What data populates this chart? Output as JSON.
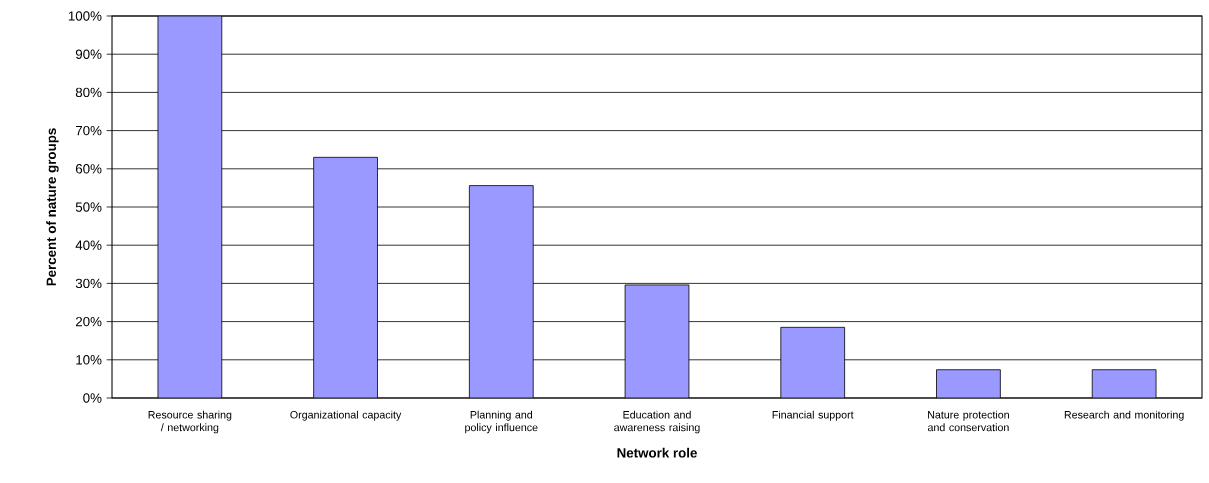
{
  "chart_data": {
    "type": "bar",
    "xlabel": "Network role",
    "ylabel": "Percent of nature groups",
    "categories": [
      "Resource sharing / networking",
      "Organizational capacity",
      "Planning and policy influence",
      "Education and awareness raising",
      "Financial support",
      "Nature protection and conservation",
      "Research and monitoring"
    ],
    "values": [
      100,
      63,
      55.6,
      29.6,
      18.5,
      7.4,
      7.4
    ],
    "color": "#9999ff",
    "ylim": [
      0,
      100
    ],
    "yticks": [
      {
        "value": 0,
        "label": "0%"
      },
      {
        "value": 10,
        "label": "10%"
      },
      {
        "value": 20,
        "label": "20%"
      },
      {
        "value": 30,
        "label": "30%"
      },
      {
        "value": 40,
        "label": "40%"
      },
      {
        "value": 50,
        "label": "50%"
      },
      {
        "value": 60,
        "label": "60%"
      },
      {
        "value": 70,
        "label": "70%"
      },
      {
        "value": 80,
        "label": "80%"
      },
      {
        "value": 90,
        "label": "90%"
      },
      {
        "value": 100,
        "label": "100%"
      }
    ],
    "grid": "y"
  }
}
